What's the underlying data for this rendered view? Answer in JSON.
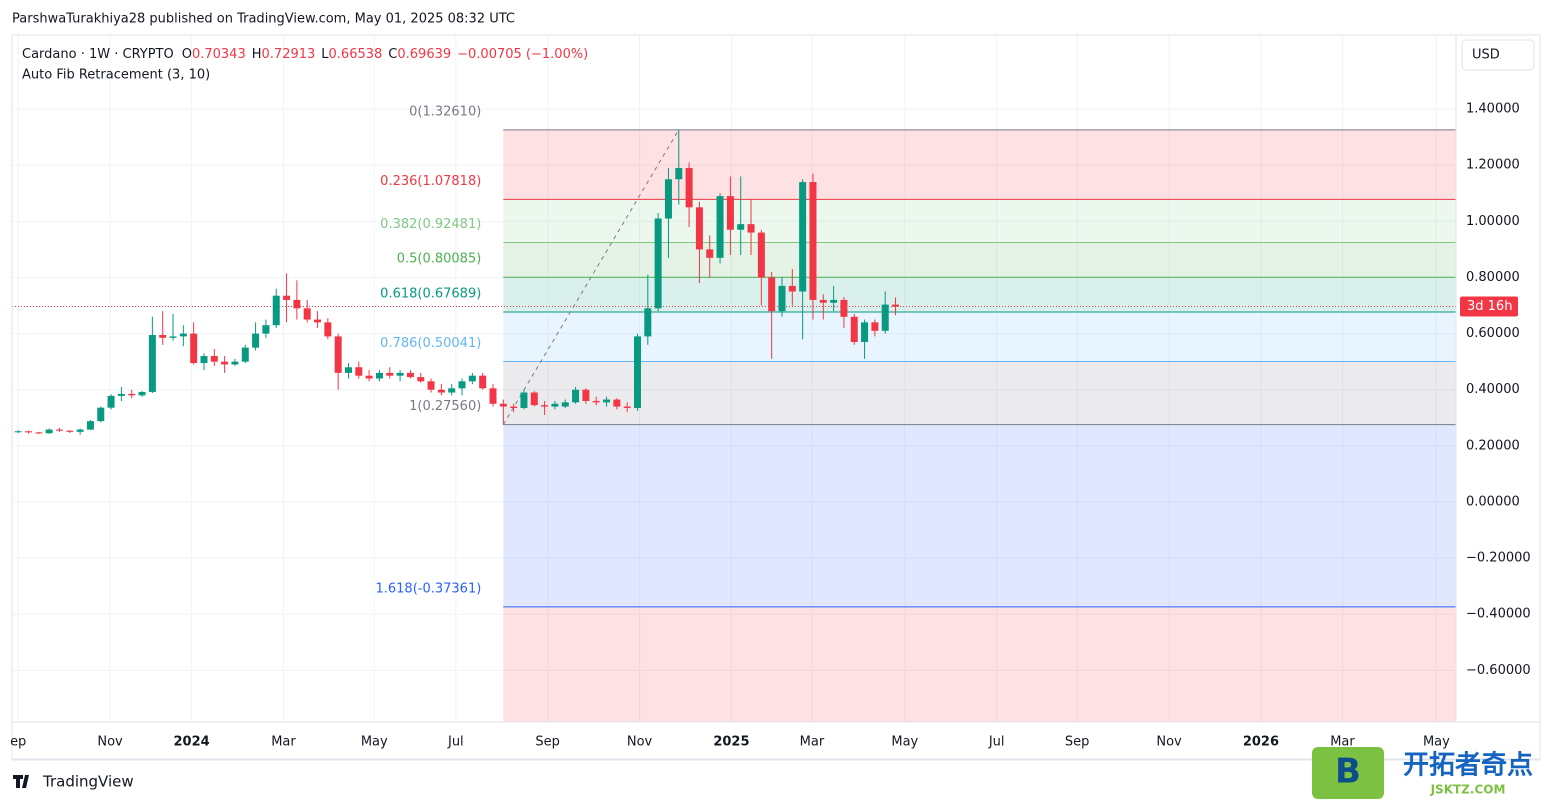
{
  "chart_data": {
    "type": "candlestick",
    "publisher": "ParshwaTurakhiya28 published on TradingView.com, May 01, 2025 08:32 UTC",
    "symbol": "Cardano · 1W · CRYPTO",
    "legend_keys": [
      "O",
      "H",
      "L",
      "C"
    ],
    "change": {
      "value": -0.00705,
      "label": "−0.00705 (−1.00%)"
    },
    "indicator": "Auto Fib Retracement (3, 10)",
    "currency": "USD",
    "countdown": "3d 16h",
    "brand": "TradingView",
    "watermark": [
      "开拓者奇点",
      "JSKTZ.COM"
    ],
    "up_color": "#089981",
    "down_color": "#f23645",
    "open": [
      0.25,
      0.252,
      0.248,
      0.245,
      0.258,
      0.254,
      0.25,
      0.258,
      0.288,
      0.336,
      0.378,
      0.385,
      0.38,
      0.392,
      0.595,
      0.585,
      0.59,
      0.6,
      0.495,
      0.52,
      0.5,
      0.49,
      0.5,
      0.55,
      0.6,
      0.63,
      0.735,
      0.72,
      0.69,
      0.65,
      0.64,
      0.59,
      0.46,
      0.48,
      0.45,
      0.44,
      0.46,
      0.45,
      0.46,
      0.445,
      0.43,
      0.4,
      0.39,
      0.405,
      0.43,
      0.45,
      0.405,
      0.35,
      0.34,
      0.335,
      0.39,
      0.345,
      0.34,
      0.34,
      0.355,
      0.4,
      0.36,
      0.355,
      0.365,
      0.34,
      0.335,
      0.59,
      0.69,
      1.01,
      1.15,
      1.19,
      1.05,
      0.9,
      0.87,
      1.09,
      0.97,
      0.99,
      0.96,
      0.8,
      0.68,
      0.77,
      0.75,
      1.14,
      0.72,
      0.71,
      0.72,
      0.66,
      0.57,
      0.64,
      0.61,
      0.70343
    ],
    "high": [
      0.256,
      0.254,
      0.25,
      0.262,
      0.264,
      0.256,
      0.262,
      0.292,
      0.34,
      0.384,
      0.41,
      0.4,
      0.395,
      0.66,
      0.68,
      0.67,
      0.63,
      0.64,
      0.53,
      0.545,
      0.52,
      0.51,
      0.56,
      0.64,
      0.65,
      0.76,
      0.815,
      0.79,
      0.72,
      0.68,
      0.655,
      0.6,
      0.495,
      0.5,
      0.47,
      0.47,
      0.48,
      0.47,
      0.47,
      0.46,
      0.44,
      0.42,
      0.42,
      0.44,
      0.46,
      0.46,
      0.42,
      0.365,
      0.35,
      0.4,
      0.395,
      0.36,
      0.36,
      0.365,
      0.41,
      0.405,
      0.375,
      0.375,
      0.37,
      0.355,
      0.6,
      0.81,
      1.03,
      1.19,
      1.3261,
      1.21,
      1.07,
      0.95,
      1.1,
      1.16,
      1.16,
      1.08,
      0.97,
      0.82,
      0.8,
      0.83,
      1.15,
      1.17,
      0.74,
      0.77,
      0.73,
      0.67,
      0.65,
      0.65,
      0.75,
      0.72913
    ],
    "low": [
      0.246,
      0.244,
      0.242,
      0.243,
      0.25,
      0.246,
      0.24,
      0.256,
      0.284,
      0.33,
      0.36,
      0.37,
      0.375,
      0.388,
      0.56,
      0.575,
      0.555,
      0.49,
      0.47,
      0.485,
      0.46,
      0.485,
      0.495,
      0.54,
      0.585,
      0.62,
      0.64,
      0.65,
      0.64,
      0.62,
      0.58,
      0.4,
      0.44,
      0.44,
      0.43,
      0.43,
      0.44,
      0.43,
      0.44,
      0.425,
      0.39,
      0.38,
      0.38,
      0.38,
      0.42,
      0.4,
      0.34,
      0.2756,
      0.32,
      0.33,
      0.34,
      0.31,
      0.33,
      0.335,
      0.35,
      0.35,
      0.345,
      0.34,
      0.33,
      0.32,
      0.325,
      0.56,
      0.68,
      0.87,
      1.06,
      0.98,
      0.78,
      0.8,
      0.85,
      0.88,
      0.88,
      0.88,
      0.7,
      0.51,
      0.66,
      0.7,
      0.58,
      0.65,
      0.65,
      0.68,
      0.62,
      0.56,
      0.51,
      0.59,
      0.6,
      0.66538
    ],
    "close": [
      0.252,
      0.248,
      0.245,
      0.258,
      0.254,
      0.25,
      0.258,
      0.288,
      0.336,
      0.378,
      0.385,
      0.38,
      0.392,
      0.595,
      0.585,
      0.59,
      0.6,
      0.495,
      0.52,
      0.5,
      0.49,
      0.5,
      0.55,
      0.6,
      0.63,
      0.735,
      0.72,
      0.69,
      0.65,
      0.64,
      0.59,
      0.46,
      0.48,
      0.45,
      0.44,
      0.46,
      0.45,
      0.46,
      0.445,
      0.43,
      0.4,
      0.39,
      0.405,
      0.43,
      0.45,
      0.405,
      0.35,
      0.34,
      0.335,
      0.39,
      0.345,
      0.34,
      0.35,
      0.355,
      0.4,
      0.36,
      0.355,
      0.365,
      0.34,
      0.335,
      0.59,
      0.69,
      1.01,
      1.15,
      1.19,
      1.05,
      0.9,
      0.87,
      1.09,
      0.97,
      0.99,
      0.96,
      0.8,
      0.68,
      0.77,
      0.75,
      1.14,
      0.72,
      0.71,
      0.72,
      0.66,
      0.57,
      0.64,
      0.61,
      0.70343,
      0.69639
    ],
    "xlim": [
      -0.6,
      139.3
    ],
    "xticks": [
      {
        "value": 0,
        "label": "ep"
      },
      {
        "value": 8.9,
        "label": "Nov"
      },
      {
        "value": 16.8,
        "label": "2024"
      },
      {
        "value": 25.7,
        "label": "Mar"
      },
      {
        "value": 34.5,
        "label": "May"
      },
      {
        "value": 42.4,
        "label": "Jul"
      },
      {
        "value": 51.3,
        "label": "Sep"
      },
      {
        "value": 60.2,
        "label": "Nov"
      },
      {
        "value": 69.1,
        "label": "2025"
      },
      {
        "value": 76.9,
        "label": "Mar"
      },
      {
        "value": 85.9,
        "label": "May"
      },
      {
        "value": 94.8,
        "label": "Jul"
      },
      {
        "value": 102.6,
        "label": "Sep"
      },
      {
        "value": 111.5,
        "label": "Nov"
      },
      {
        "value": 120.4,
        "label": "2026"
      },
      {
        "value": 128.3,
        "label": "Mar"
      },
      {
        "value": 137.4,
        "label": "May"
      }
    ],
    "ylim": [
      -0.784,
      1.664
    ],
    "yticks": [
      {
        "value": 1.4,
        "label": "1.40000"
      },
      {
        "value": 1.2,
        "label": "1.20000"
      },
      {
        "value": 1.0,
        "label": "1.00000"
      },
      {
        "value": 0.8,
        "label": "0.80000"
      },
      {
        "value": 0.6,
        "label": "0.60000"
      },
      {
        "value": 0.4,
        "label": "0.40000"
      },
      {
        "value": 0.2,
        "label": "0.20000"
      },
      {
        "value": 0,
        "label": "0.00000"
      },
      {
        "value": -0.2,
        "label": "−0.20000"
      },
      {
        "value": -0.4,
        "label": "−0.40000"
      },
      {
        "value": -0.6,
        "label": "−0.60000"
      }
    ],
    "grid": true,
    "fib": {
      "from": 47,
      "to": 64,
      "extension_color": "#f23645",
      "levels": [
        {
          "label": "0(1.32610)",
          "value": 1.3261,
          "color": "#787b86"
        },
        {
          "label": "0.236(1.07818)",
          "value": 1.07818,
          "color": "#f23645"
        },
        {
          "label": "0.382(0.92481)",
          "value": 0.92481,
          "color": "#81c784"
        },
        {
          "label": "0.5(0.80085)",
          "value": 0.80085,
          "color": "#4caf50"
        },
        {
          "label": "0.618(0.67689)",
          "value": 0.67689,
          "color": "#089981"
        },
        {
          "label": "0.786(0.50041)",
          "value": 0.50041,
          "color": "#64b5f6"
        },
        {
          "label": "1(0.27560)",
          "value": 0.2756,
          "color": "#787b86"
        },
        {
          "label": "1.618(-0.37361)",
          "value": -0.37361,
          "color": "#2962ff"
        }
      ]
    }
  }
}
